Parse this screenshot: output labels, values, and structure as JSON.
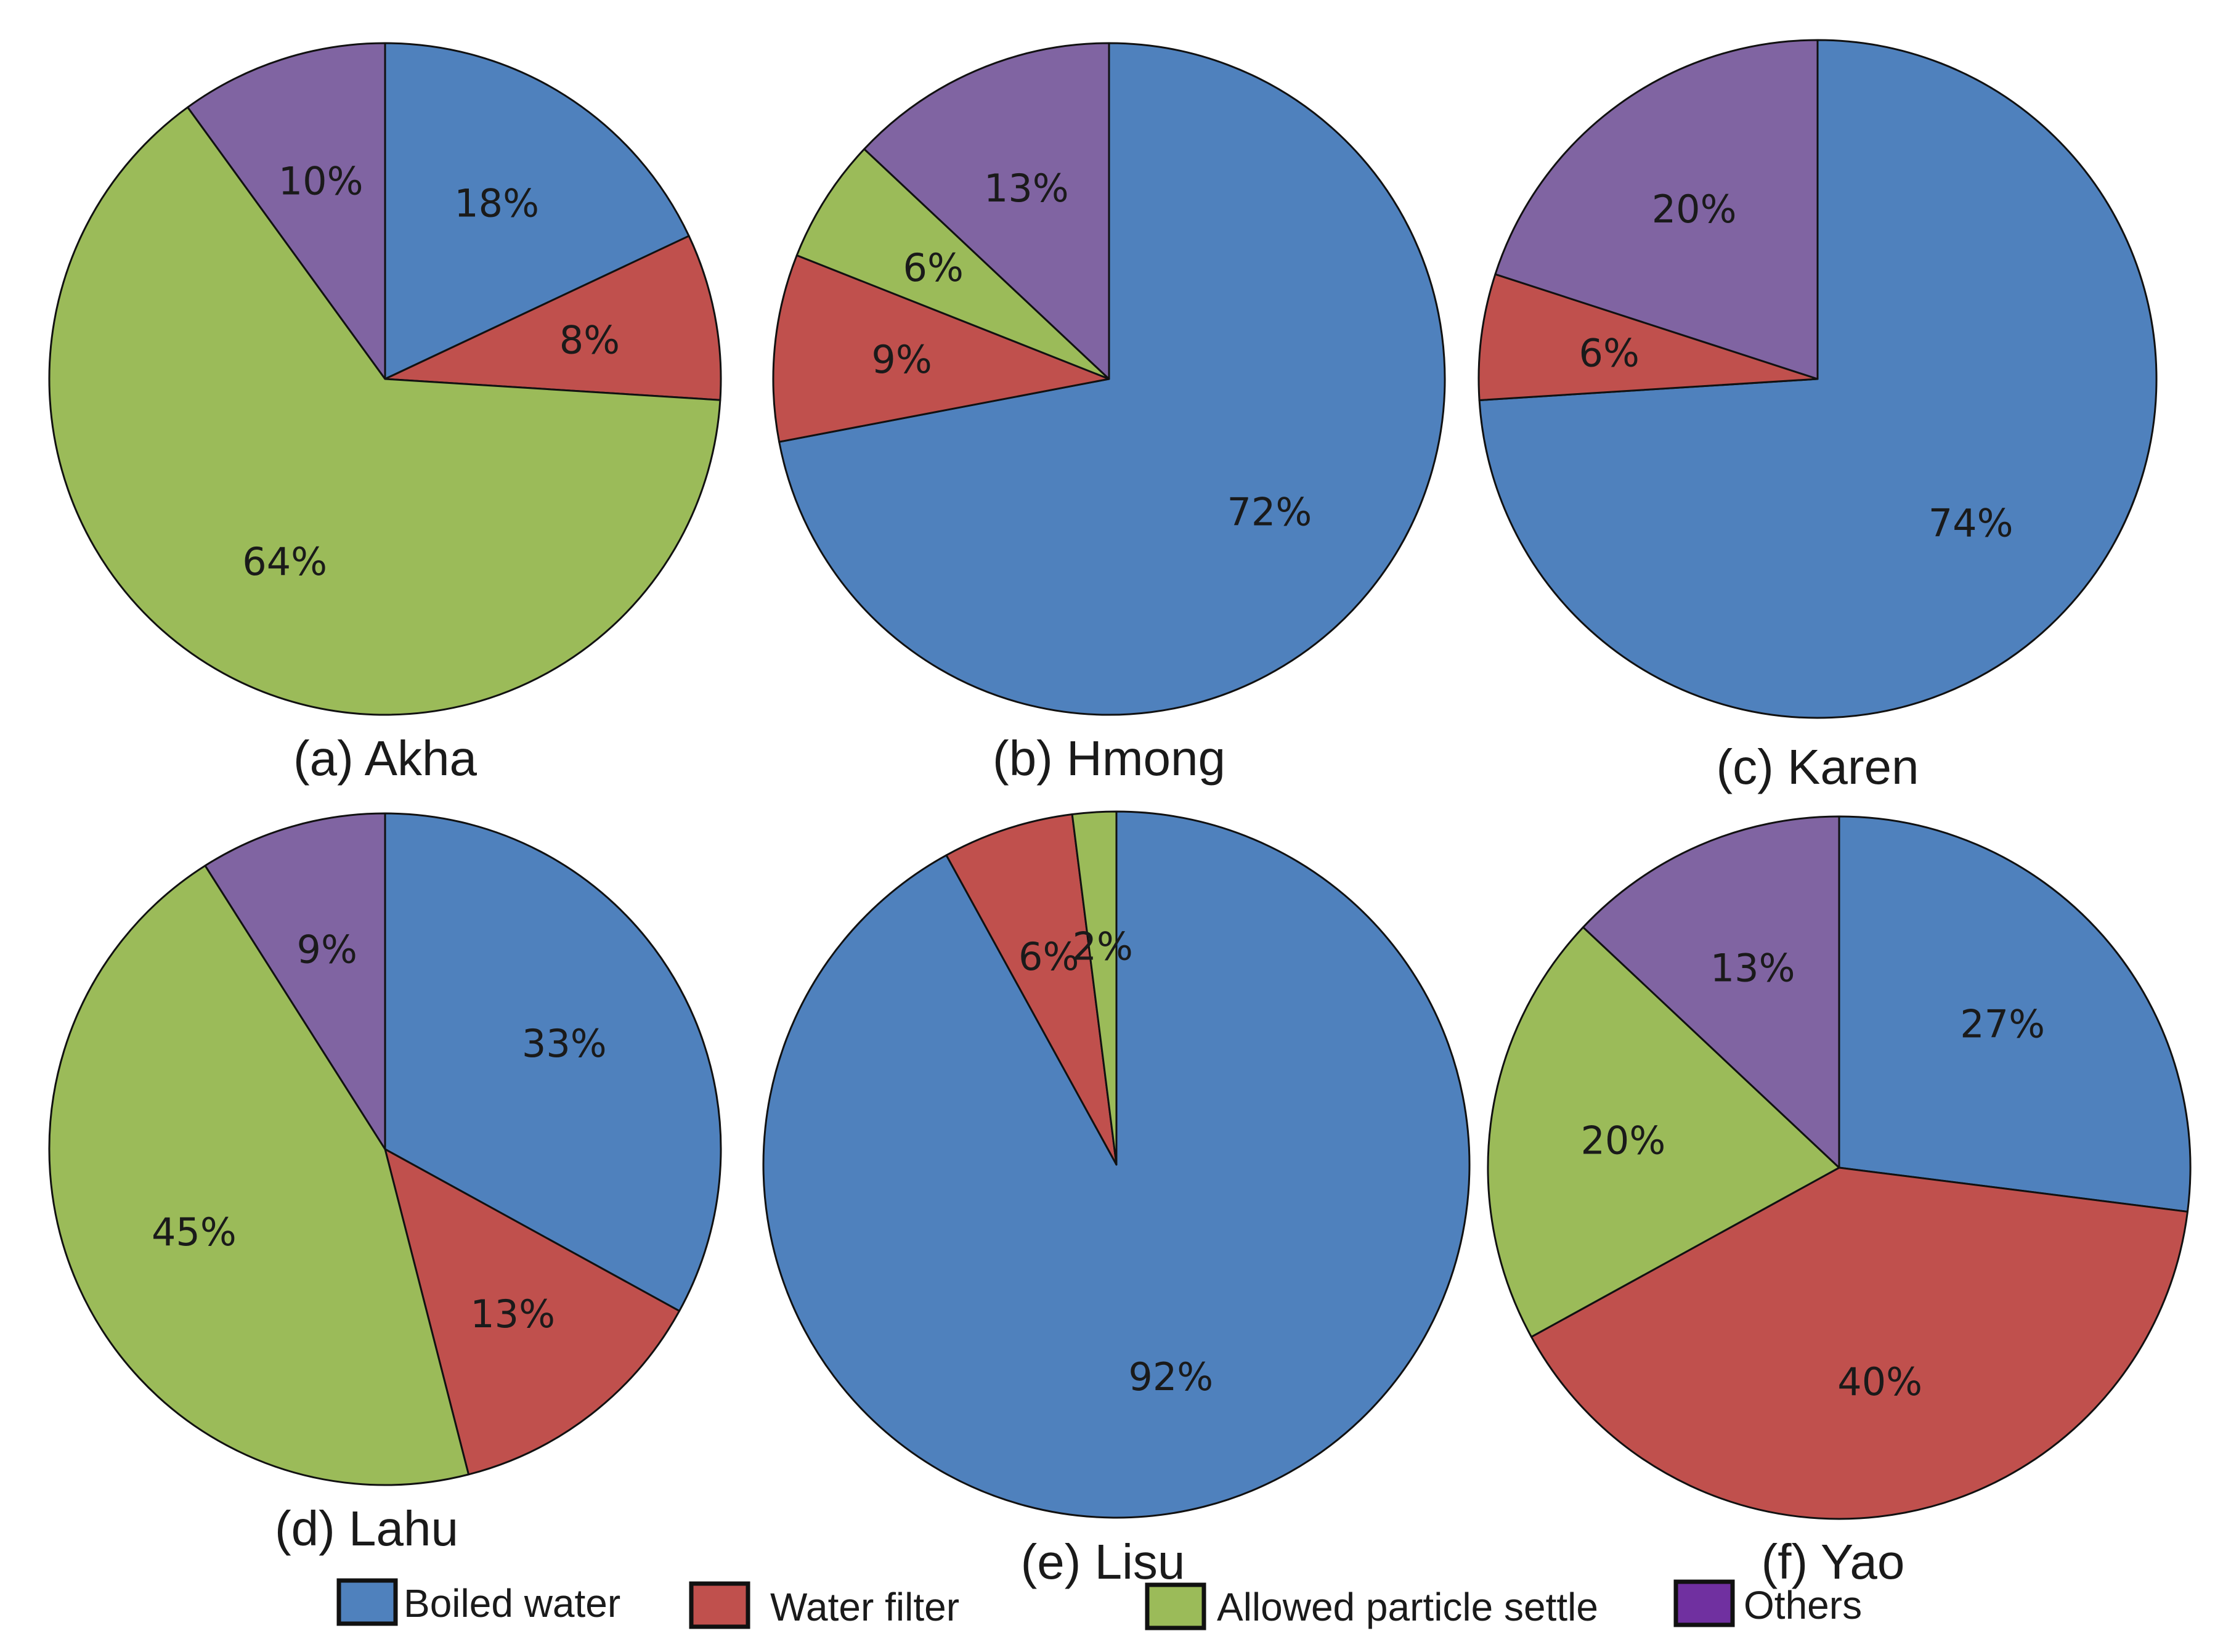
{
  "colors": {
    "Boiled water": "#4F81BD",
    "Water filter": "#C0504D",
    "Allowed particle settle": "#9BBB59",
    "Others": "#8064A2"
  },
  "chart_data": [
    {
      "type": "pie",
      "title": "(a) Akha",
      "slices": [
        {
          "name": "Boiled water",
          "value": 18,
          "label": "18%"
        },
        {
          "name": "Water filter",
          "value": 8,
          "label": "8%"
        },
        {
          "name": "Allowed particle settle",
          "value": 64,
          "label": "64%"
        },
        {
          "name": "Others",
          "value": 10,
          "label": "10%"
        }
      ]
    },
    {
      "type": "pie",
      "title": "(b) Hmong",
      "slices": [
        {
          "name": "Boiled water",
          "value": 72,
          "label": "72%"
        },
        {
          "name": "Water filter",
          "value": 9,
          "label": "9%"
        },
        {
          "name": "Allowed particle settle",
          "value": 6,
          "label": "6%"
        },
        {
          "name": "Others",
          "value": 13,
          "label": "13%"
        }
      ]
    },
    {
      "type": "pie",
      "title": "(c) Karen",
      "slices": [
        {
          "name": "Boiled water",
          "value": 74,
          "label": "74%"
        },
        {
          "name": "Water filter",
          "value": 6,
          "label": "6%"
        },
        {
          "name": "Others",
          "value": 20,
          "label": "20%"
        }
      ]
    },
    {
      "type": "pie",
      "title": "(d) Lahu",
      "slices": [
        {
          "name": "Boiled water",
          "value": 33,
          "label": "33%"
        },
        {
          "name": "Water filter",
          "value": 13,
          "label": "13%"
        },
        {
          "name": "Allowed particle settle",
          "value": 45,
          "label": "45%"
        },
        {
          "name": "Others",
          "value": 9,
          "label": "9%"
        }
      ]
    },
    {
      "type": "pie",
      "title": "(e) Lisu",
      "slices": [
        {
          "name": "Boiled water",
          "value": 92,
          "label": "92%"
        },
        {
          "name": "Water filter",
          "value": 6,
          "label": "6%"
        },
        {
          "name": "Allowed particle settle",
          "value": 2,
          "label": "2%"
        }
      ]
    },
    {
      "type": "pie",
      "title": "(f) Yao",
      "slices": [
        {
          "name": "Boiled water",
          "value": 27,
          "label": "27%"
        },
        {
          "name": "Water filter",
          "value": 40,
          "label": "40%"
        },
        {
          "name": "Allowed particle settle",
          "value": 20,
          "label": "20%"
        },
        {
          "name": "Others",
          "value": 13,
          "label": "13%"
        }
      ]
    }
  ],
  "legend": {
    "items": [
      {
        "name": "Boiled water",
        "label": "Boiled water"
      },
      {
        "name": "Water filter",
        "label": "Water filter"
      },
      {
        "name": "Allowed particle settle",
        "label": "Allowed particle settle"
      },
      {
        "name": "Others",
        "label": "Others"
      }
    ]
  }
}
